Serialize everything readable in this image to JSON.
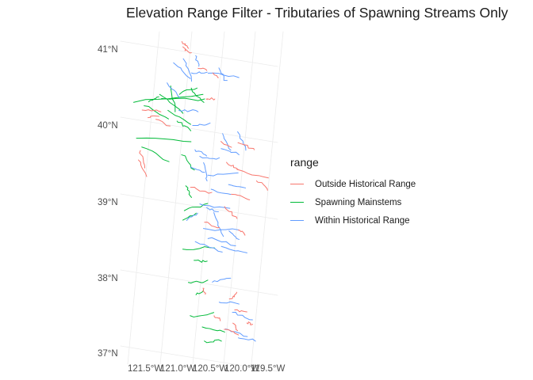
{
  "title": "Elevation Range Filter - Tributaries of Spawning Streams Only",
  "latitude_labels": [
    "41°N",
    "40°N",
    "39°N",
    "38°N",
    "37°N"
  ],
  "longitude_labels": [
    "121.5°W",
    "121.0°W",
    "120.5°W",
    "120.0°W",
    "119.5°W"
  ],
  "legend": {
    "title": "range",
    "items": [
      {
        "label": "Outside Historical Range",
        "color": "#F8766D"
      },
      {
        "label": "Spawning Mainstems",
        "color": "#00BA38"
      },
      {
        "label": "Within Historical Range",
        "color": "#619CFF"
      }
    ]
  },
  "colors": {
    "grid": "#ebebeb",
    "outside": "#F8766D",
    "mainstem": "#00BA38",
    "within": "#619CFF"
  }
}
